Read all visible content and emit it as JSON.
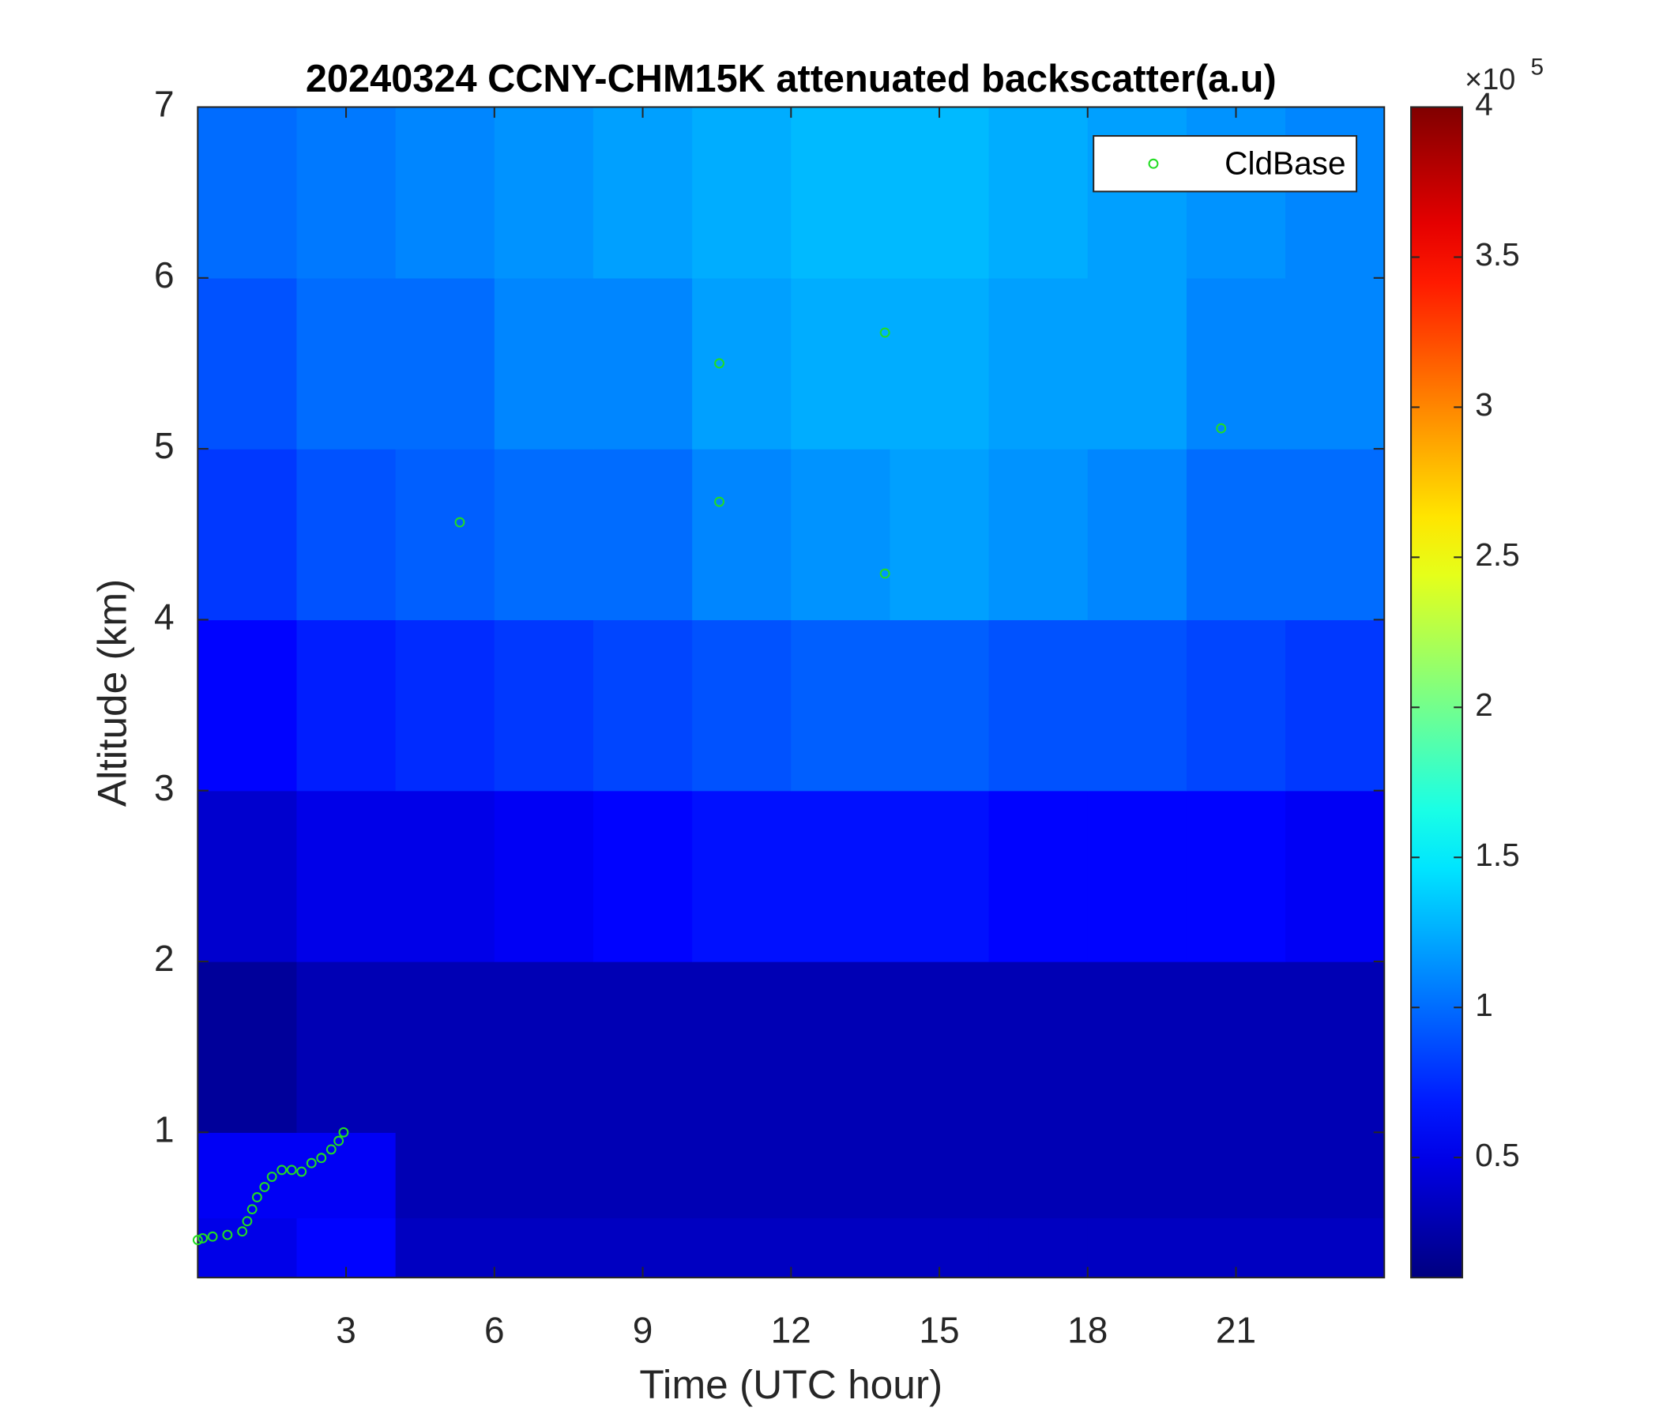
{
  "chart_data": {
    "type": "heatmap",
    "title": "20240324 CCNY-CHM15K attenuated backscatter(a.u)",
    "x_label": "Time (UTC hour)",
    "y_label": "Altitude (km)",
    "xlim": [
      0,
      24
    ],
    "xticks": [
      3,
      6,
      9,
      12,
      15,
      18,
      21
    ],
    "ylim": [
      0.15,
      7
    ],
    "yticks": [
      1,
      2,
      3,
      4,
      5,
      6,
      7
    ],
    "x_bins": [
      0,
      2,
      4,
      6,
      8,
      10,
      12,
      14,
      16,
      18,
      20,
      22,
      24
    ],
    "y_bins": [
      0.15,
      0.5,
      1,
      2,
      3,
      4,
      5,
      6,
      7
    ],
    "z": [
      [
        0.5,
        0.6,
        0.35,
        0.35,
        0.35,
        0.35,
        0.35,
        0.35,
        0.35,
        0.35,
        0.35,
        0.35
      ],
      [
        0.55,
        0.55,
        0.3,
        0.3,
        0.3,
        0.3,
        0.3,
        0.3,
        0.3,
        0.3,
        0.3,
        0.3
      ],
      [
        0.2,
        0.3,
        0.3,
        0.3,
        0.3,
        0.3,
        0.3,
        0.3,
        0.3,
        0.3,
        0.3,
        0.3
      ],
      [
        0.4,
        0.5,
        0.5,
        0.55,
        0.6,
        0.65,
        0.65,
        0.65,
        0.6,
        0.6,
        0.6,
        0.55
      ],
      [
        0.6,
        0.7,
        0.75,
        0.8,
        0.85,
        0.9,
        0.95,
        0.95,
        0.9,
        0.9,
        0.85,
        0.8
      ],
      [
        0.8,
        0.9,
        0.95,
        1.0,
        1.0,
        1.1,
        1.15,
        1.2,
        1.15,
        1.1,
        1.0,
        1.0
      ],
      [
        0.9,
        1.0,
        1.0,
        1.1,
        1.1,
        1.2,
        1.25,
        1.25,
        1.2,
        1.2,
        1.1,
        1.1
      ],
      [
        1.0,
        1.05,
        1.1,
        1.15,
        1.2,
        1.25,
        1.3,
        1.3,
        1.25,
        1.2,
        1.15,
        1.1
      ]
    ],
    "colorbar": {
      "clim": [
        0.1,
        4
      ],
      "ticks": [
        0.5,
        1,
        1.5,
        2,
        2.5,
        3,
        3.5,
        4
      ],
      "multiplier": "×10",
      "exponent": "5"
    },
    "legend": "upper right",
    "series": [
      {
        "name": "CldBase",
        "color": "#22dd22",
        "x": [
          0,
          0.1,
          0.3,
          0.6,
          0.9,
          1.0,
          1.1,
          1.2,
          1.35,
          1.5,
          1.7,
          1.9,
          2.1,
          2.3,
          2.5,
          2.7,
          2.85,
          2.95,
          5.3,
          10.55,
          10.55,
          13.9,
          13.9,
          20.7
        ],
        "values": [
          0.37,
          0.38,
          0.39,
          0.4,
          0.42,
          0.48,
          0.55,
          0.62,
          0.68,
          0.74,
          0.78,
          0.78,
          0.77,
          0.82,
          0.85,
          0.9,
          0.95,
          1.0,
          4.57,
          5.5,
          4.69,
          5.68,
          4.27,
          5.12
        ]
      }
    ]
  }
}
